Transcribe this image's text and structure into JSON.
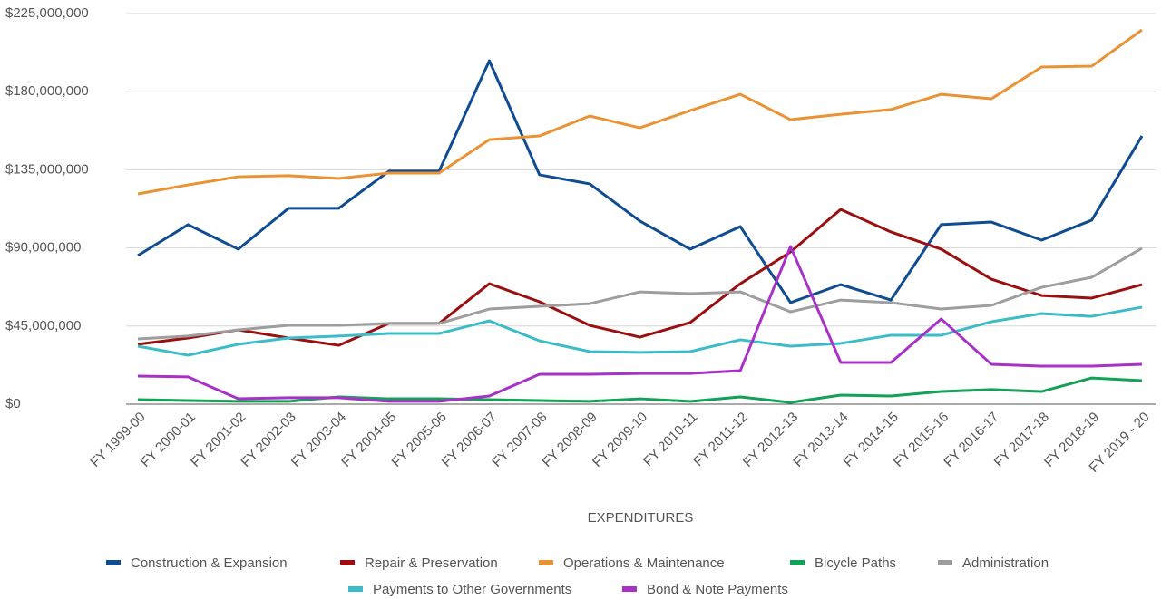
{
  "chart_data": {
    "type": "line",
    "x_label": "EXPENDITURES",
    "categories": [
      "FY 1999-00",
      "FY 2000-01",
      "FY 2001-02",
      "FY 2002-03",
      "FY 2003-04",
      "FY 2004-05",
      "FY 2005-06",
      "FY 2006-07",
      "FY 2007-08",
      "FY 2008-09",
      "FY 2009-10",
      "FY 2010-11",
      "FY 2011-12",
      "FY 2012-13",
      "FY 2013-14",
      "FY 2014-15",
      "FY 2015-16",
      "FY 2016-17",
      "FY 2017-18",
      "FY 2018-19",
      "FY 2019 - 20"
    ],
    "ylim": [
      0,
      225000000
    ],
    "yticks": [
      {
        "value": 0,
        "label": "$0"
      },
      {
        "value": 45000000,
        "label": "$45,000,000"
      },
      {
        "value": 90000000,
        "label": "$90,000,000"
      },
      {
        "value": 135000000,
        "label": "$135,000,000"
      },
      {
        "value": 180000000,
        "label": "$180,000,000"
      },
      {
        "value": 225000000,
        "label": "$225,000,000"
      }
    ],
    "grid": true,
    "legend": "bottom",
    "series": [
      {
        "name": "Construction & Expansion",
        "color": "#0f4c92",
        "values": [
          85600000,
          103400000,
          89300000,
          112800000,
          112800000,
          134200000,
          134200000,
          197800000,
          132100000,
          126900000,
          105500000,
          89300000,
          102300000,
          58500000,
          68900000,
          60000000,
          103400000,
          104900000,
          94500000,
          106000000,
          154500000
        ]
      },
      {
        "name": "Repair & Preservation",
        "color": "#9a1010",
        "values": [
          34500000,
          38100000,
          42800000,
          38100000,
          33900000,
          46500000,
          46500000,
          69400000,
          59000000,
          45400000,
          38600000,
          47000000,
          69400000,
          87700000,
          112200000,
          99200000,
          89300000,
          72000000,
          62600000,
          61100000,
          68900000
        ]
      },
      {
        "name": "Operations & Maintenance",
        "color": "#ea9334",
        "values": [
          121100000,
          126300000,
          131000000,
          131600000,
          130000000,
          133100000,
          133100000,
          152400000,
          154500000,
          166000000,
          159200000,
          169100000,
          178500000,
          163900000,
          167000000,
          169700000,
          178500000,
          175900000,
          194200000,
          194700000,
          215600000
        ]
      },
      {
        "name": "Bicycle Paths",
        "color": "#13a156",
        "values": [
          2600000,
          2100000,
          1600000,
          1600000,
          4200000,
          3100000,
          3100000,
          2600000,
          2100000,
          1600000,
          3100000,
          1600000,
          4200000,
          1000000,
          5200000,
          4700000,
          7300000,
          8400000,
          7300000,
          15100000,
          13600000
        ]
      },
      {
        "name": "Administration",
        "color": "#9e9e9e",
        "values": [
          37600000,
          39200000,
          42800000,
          45400000,
          45400000,
          46500000,
          46500000,
          54800000,
          56400000,
          57900000,
          64700000,
          63700000,
          64700000,
          53200000,
          60000000,
          58500000,
          54800000,
          56900000,
          67300000,
          73100000,
          89800000
        ]
      },
      {
        "name": "Payments to Other Governments",
        "color": "#3bbcc8",
        "values": [
          33400000,
          28200000,
          34500000,
          38100000,
          39200000,
          40700000,
          40700000,
          48000000,
          36500000,
          30300000,
          29800000,
          30300000,
          37100000,
          33400000,
          35000000,
          39700000,
          39700000,
          47500000,
          52200000,
          50600000,
          55900000
        ]
      },
      {
        "name": "Bond & Note Payments",
        "color": "#a832c8",
        "values": [
          16200000,
          15700000,
          3100000,
          3700000,
          3700000,
          1600000,
          1600000,
          4700000,
          17200000,
          17200000,
          17700000,
          17700000,
          19300000,
          90800000,
          24000000,
          24000000,
          49100000,
          23000000,
          21900000,
          21900000,
          23000000
        ]
      }
    ]
  }
}
